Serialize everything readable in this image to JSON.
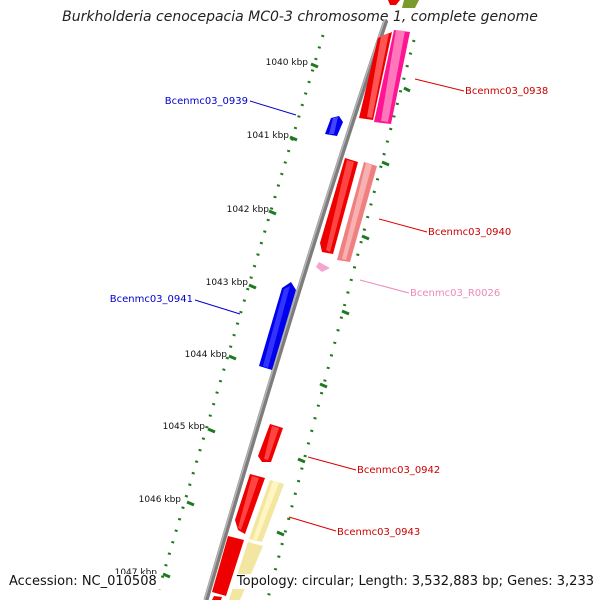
{
  "title": "Burkholderia cenocepacia MC0-3 chromosome 1, complete genome",
  "footer": {
    "accession": "Accession: NC_010508",
    "summary": "Topology: circular; Length: 3,532,883 bp; Genes: 3,233"
  },
  "colors": {
    "backbone": "#7d7d7d",
    "tick": "#1f7a1f",
    "forward_gene": "#0000ee",
    "reverse_gene": "#ee0000",
    "reverse_gene_light": "#f08080",
    "pseudo_gene": "#ff1493",
    "rna_gene": "#f4a6d0",
    "other_feature": "#f2e6a0",
    "top_feature": "#7a9a2a"
  },
  "ruler": {
    "ticks": [
      {
        "label": "1040 kbp",
        "kbp": 1040
      },
      {
        "label": "1041 kbp",
        "kbp": 1041
      },
      {
        "label": "1042 kbp",
        "kbp": 1042
      },
      {
        "label": "1043 kbp",
        "kbp": 1043
      },
      {
        "label": "1044 kbp",
        "kbp": 1044
      },
      {
        "label": "1045 kbp",
        "kbp": 1045
      },
      {
        "label": "1046 kbp",
        "kbp": 1046
      },
      {
        "label": "1047 kbp",
        "kbp": 1047
      }
    ]
  },
  "genes": [
    {
      "label": "Bcenmc03_0938",
      "color": "#cc0000"
    },
    {
      "label": "Bcenmc03_0939",
      "color": "#0000cc"
    },
    {
      "label": "Bcenmc03_0940",
      "color": "#cc0000"
    },
    {
      "label": "Bcenmc03_R0026",
      "color": "#ee88bb"
    },
    {
      "label": "Bcenmc03_0941",
      "color": "#0000cc"
    },
    {
      "label": "Bcenmc03_0942",
      "color": "#cc0000"
    },
    {
      "label": "Bcenmc03_0943",
      "color": "#cc0000"
    }
  ]
}
